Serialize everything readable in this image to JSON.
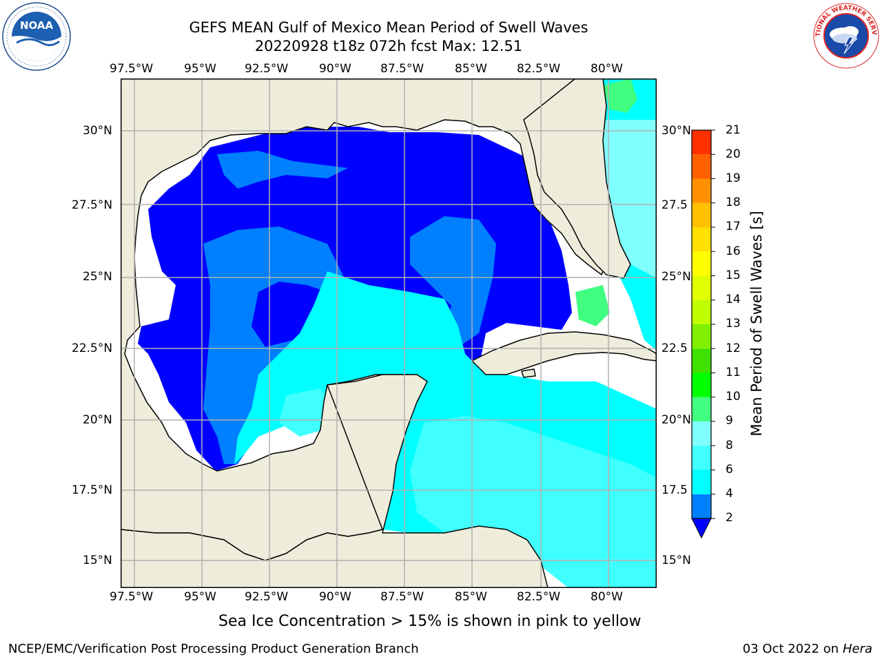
{
  "header": {
    "title_line1": "GEFS MEAN Gulf of Mexico Mean Period of Swell Waves",
    "title_line2": "20220928 t18z 072h fcst   Max: 12.51"
  },
  "logos": {
    "noaa_text": "NOAA",
    "noaa_ring_text": "NATIONAL OCEANIC AND ATMOSPHERIC ADMINISTRATION · U.S. DEPARTMENT OF COMMERCE",
    "nws_ring_text": "NATIONAL WEATHER SERVICE"
  },
  "map": {
    "lon_labels": [
      "97.5°W",
      "95°W",
      "92.5°W",
      "90°W",
      "87.5°W",
      "85°W",
      "82.5°W",
      "80°W"
    ],
    "lat_labels": [
      "30°N",
      "27.5°N",
      "25°N",
      "22.5°N",
      "20°N",
      "17.5°N",
      "15°N"
    ],
    "lat_labels_right": [
      "30°N",
      "27.5",
      "25°N",
      "22.5",
      "20°N",
      "17.5",
      "15°N"
    ],
    "lon_range": [
      -98,
      -79
    ],
    "lat_range": [
      14,
      31.5
    ],
    "colors": {
      "land": "#eeeddb",
      "ocean_white": "#ffffff",
      "coast": "#000000",
      "grid": "#b0b0b0"
    }
  },
  "colorbar": {
    "label": "Mean Period of Swell Waves [s]",
    "levels": [
      "2",
      "4",
      "6",
      "8",
      "9",
      "10",
      "11",
      "12",
      "13",
      "14",
      "15",
      "16",
      "17",
      "18",
      "19",
      "20",
      "21"
    ],
    "colors": [
      "#0000ff",
      "#0080ff",
      "#00ffff",
      "#40ffff",
      "#80ffff",
      "#40ff80",
      "#00ff00",
      "#40e000",
      "#80f000",
      "#c0ff00",
      "#e0ff00",
      "#ffff00",
      "#ffe000",
      "#ffc000",
      "#ff9000",
      "#ff6000",
      "#ff3000",
      "#ff0000"
    ],
    "extend_color": "#0000ff"
  },
  "footer": {
    "note": "Sea Ice Concentration > 15% is shown in pink to yellow",
    "left": "NCEP/EMC/Verification Post Processing Product Generation Branch",
    "right_date": "03 Oct 2022 on ",
    "right_machine": "Hera"
  }
}
